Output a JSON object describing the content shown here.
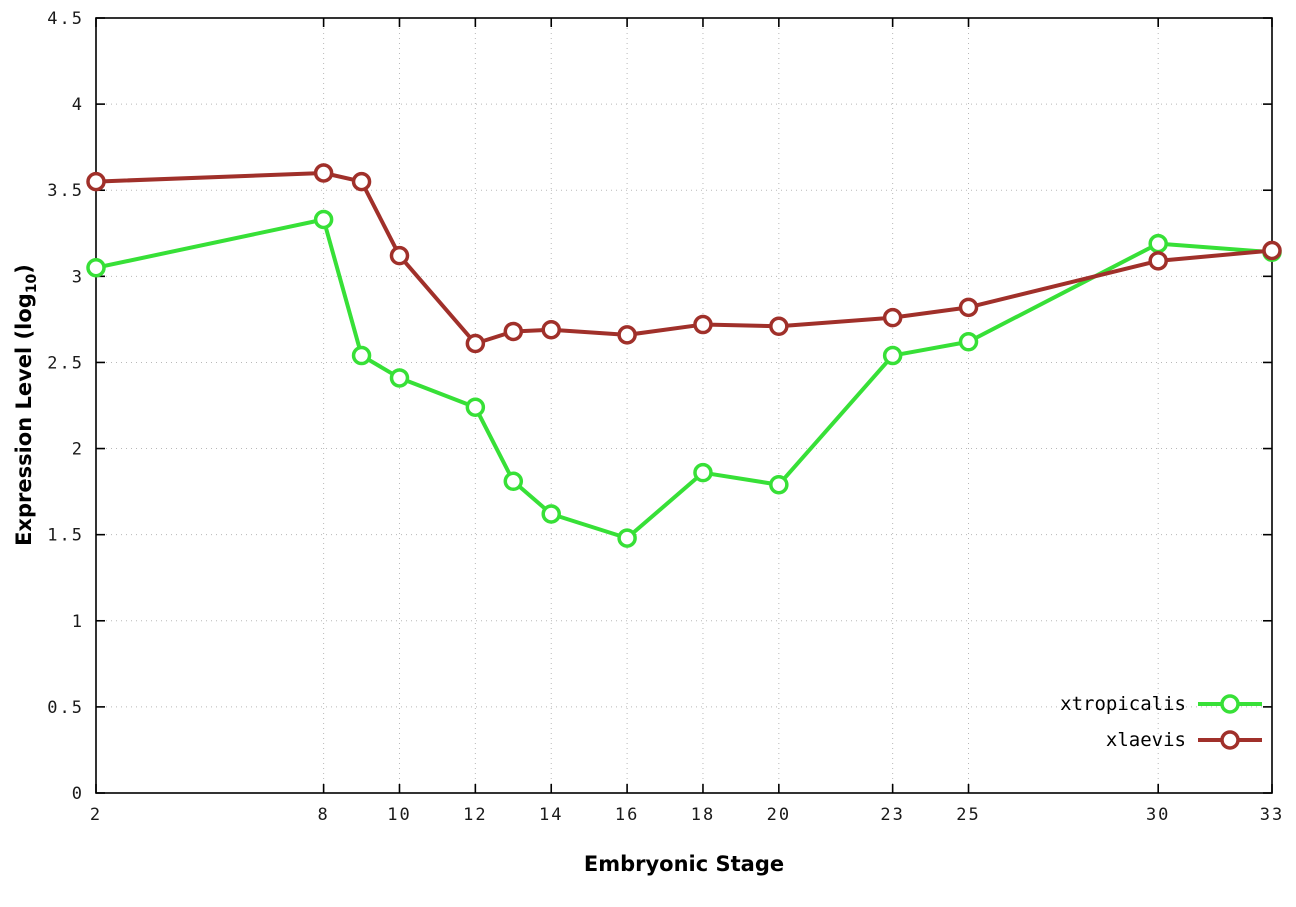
{
  "chart_data": {
    "type": "line",
    "title": "",
    "xlabel": "Embryonic Stage",
    "ylabel": "Expression Level (log10)",
    "ylabel_parts": {
      "prefix": "Expression Level (log",
      "sub": "10",
      "suffix": ")"
    },
    "xlim": [
      2,
      33
    ],
    "ylim": [
      0,
      4.5
    ],
    "grid": true,
    "x": [
      2,
      8,
      9,
      10,
      12,
      13,
      14,
      16,
      18,
      20,
      23,
      25,
      30,
      33
    ],
    "x_ticks": [
      2,
      8,
      10,
      12,
      14,
      16,
      18,
      20,
      23,
      25,
      30,
      33
    ],
    "x_tick_labels": [
      "2",
      "8",
      "10",
      "12",
      "14",
      "16",
      "18",
      "20",
      "23",
      "25",
      "30",
      "33"
    ],
    "y_ticks": [
      0,
      0.5,
      1,
      1.5,
      2,
      2.5,
      3,
      3.5,
      4,
      4.5
    ],
    "y_tick_labels": [
      "0",
      "0.5",
      "1",
      "1.5",
      "2",
      "2.5",
      "3",
      "3.5",
      "4",
      "4.5"
    ],
    "legend": {
      "position": "bottom-right",
      "entries": [
        "xtropicalis",
        "xlaevis"
      ]
    },
    "series": [
      {
        "name": "xtropicalis",
        "color": "#37e037",
        "values": [
          3.05,
          3.33,
          2.54,
          2.41,
          2.24,
          1.81,
          1.62,
          1.48,
          1.86,
          1.79,
          2.54,
          2.62,
          3.19,
          3.14
        ]
      },
      {
        "name": "xlaevis",
        "color": "#a0302a",
        "values": [
          3.55,
          3.6,
          3.55,
          3.12,
          2.61,
          2.68,
          2.69,
          2.66,
          2.72,
          2.71,
          2.76,
          2.82,
          3.09,
          3.15
        ]
      }
    ]
  }
}
